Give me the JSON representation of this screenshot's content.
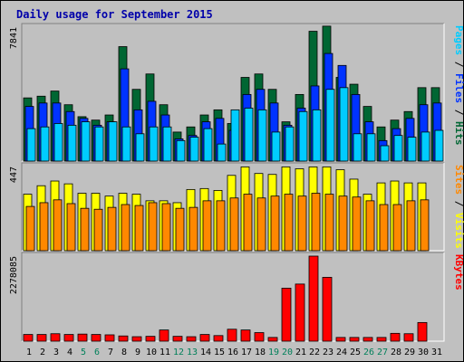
{
  "chart_data": {
    "type": "bar",
    "title": "Daily usage for September 2015",
    "categories": [
      "1",
      "2",
      "3",
      "4",
      "5",
      "6",
      "7",
      "8",
      "9",
      "10",
      "11",
      "12",
      "13",
      "14",
      "15",
      "16",
      "17",
      "18",
      "19",
      "20",
      "21",
      "22",
      "23",
      "24",
      "25",
      "26",
      "27",
      "28",
      "29",
      "30",
      "31"
    ],
    "weekend_days": [
      "5",
      "6",
      "12",
      "13",
      "19",
      "20",
      "26",
      "27"
    ],
    "panels": [
      {
        "id": "hits-files-pages",
        "max_label": "7841",
        "ymax": 7841,
        "series": [
          {
            "name": "Hits",
            "color": "#006633",
            "values": [
              3700,
              3800,
              4100,
              3300,
              2600,
              2400,
              2700,
              6700,
              4200,
              5100,
              3300,
              1700,
              2000,
              2700,
              3000,
              2200,
              4900,
              5100,
              4200,
              2300,
              3900,
              7600,
              7900,
              4900,
              4500,
              3200,
              2000,
              2400,
              2900,
              4300,
              4300
            ]
          },
          {
            "name": "Files",
            "color": "#0033ff",
            "values": [
              3200,
              3400,
              3400,
              2900,
              2500,
              2100,
              2300,
              5400,
              3000,
              3500,
              2700,
              1300,
              1500,
              2300,
              2500,
              1800,
              3900,
              4200,
              3400,
              2100,
              3100,
              4400,
              6300,
              5600,
              3900,
              2300,
              1200,
              1900,
              2500,
              3300,
              3400
            ]
          },
          {
            "name": "Pages",
            "color": "#00ccff",
            "values": [
              1900,
              2000,
              2200,
              2100,
              2300,
              2000,
              2300,
              2000,
              1600,
              2000,
              2000,
              1200,
              1400,
              1900,
              1000,
              3000,
              3100,
              3000,
              1700,
              2000,
              2900,
              3000,
              4200,
              4300,
              1600,
              1600,
              900,
              1500,
              1400,
              1700,
              1800
            ]
          }
        ]
      },
      {
        "id": "visits-sites",
        "max_label": "447",
        "ymax": 447,
        "series": [
          {
            "name": "Visits",
            "color": "#ffff00",
            "values": [
              300,
              345,
              370,
              355,
              305,
              305,
              290,
              305,
              300,
              265,
              265,
              255,
              325,
              330,
              320,
              400,
              445,
              410,
              405,
              445,
              435,
              445,
              445,
              430,
              380,
              300,
              360,
              370,
              360,
              360,
              0
            ]
          },
          {
            "name": "Sites",
            "color": "#ff8800",
            "values": [
              235,
              255,
              270,
              250,
              225,
              220,
              230,
              245,
              240,
              255,
              250,
              225,
              230,
              265,
              265,
              280,
              300,
              280,
              290,
              300,
              290,
              305,
              300,
              290,
              285,
              265,
              245,
              245,
              265,
              270,
              0
            ]
          }
        ]
      },
      {
        "id": "kbytes",
        "max_label": "2278085",
        "ymax": 2278085,
        "series": [
          {
            "name": "KBytes",
            "color": "#ff0000",
            "values": [
              180000,
              180000,
              200000,
              180000,
              190000,
              180000,
              170000,
              140000,
              120000,
              130000,
              300000,
              130000,
              120000,
              180000,
              150000,
              320000,
              300000,
              230000,
              100000,
              1420000,
              1530000,
              2278085,
              1710000,
              100000,
              100000,
              100000,
              100000,
              210000,
              200000,
              500000,
              0
            ]
          }
        ]
      }
    ]
  }
}
